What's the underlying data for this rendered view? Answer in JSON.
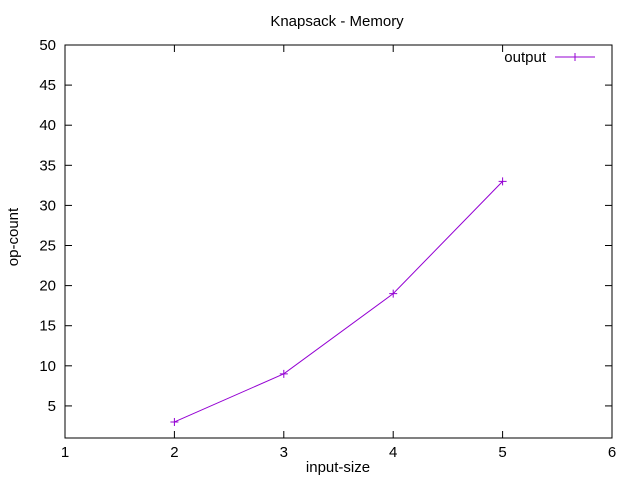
{
  "chart_data": {
    "type": "line",
    "title": "Knapsack - Memory",
    "xlabel": "input-size",
    "ylabel": "op-count",
    "xlim": [
      1,
      6
    ],
    "ylim": [
      1,
      50
    ],
    "xticks": [
      1,
      2,
      3,
      4,
      5,
      6
    ],
    "yticks": [
      5,
      10,
      15,
      20,
      25,
      30,
      35,
      40,
      45,
      50
    ],
    "grid": false,
    "legend_position": "top-right",
    "series": [
      {
        "name": "output",
        "color": "#9400d3",
        "marker": "plus",
        "x": [
          2,
          3,
          4,
          5
        ],
        "y": [
          3,
          9,
          19,
          33
        ]
      }
    ]
  }
}
